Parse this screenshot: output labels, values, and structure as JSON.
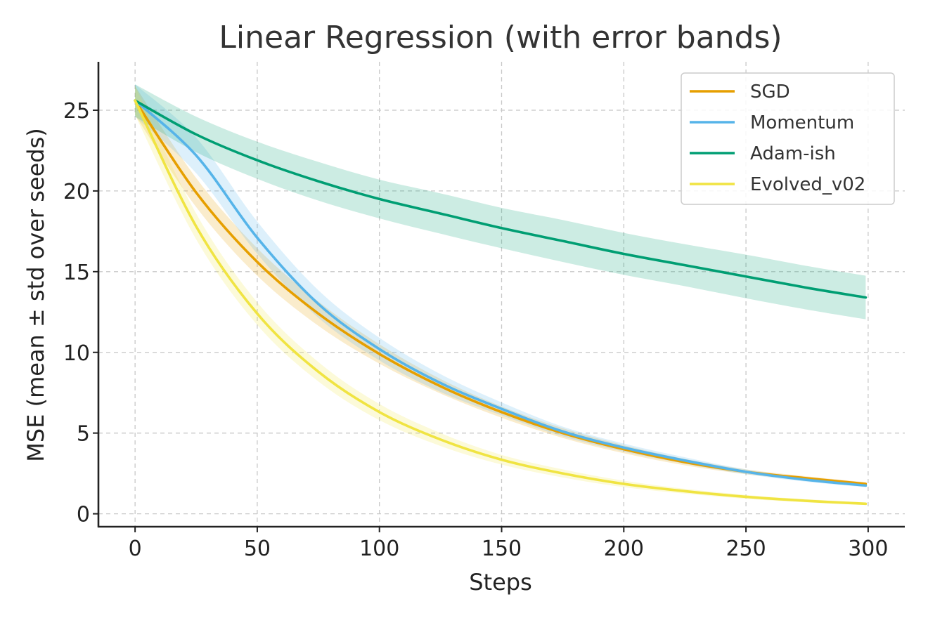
{
  "chart_data": {
    "type": "line",
    "title": "Linear Regression (with error bands)",
    "xlabel": "Steps",
    "ylabel": "MSE (mean ± std over seeds)",
    "xlim": [
      -15,
      315
    ],
    "ylim": [
      -0.8,
      28
    ],
    "xticks": [
      0,
      50,
      100,
      150,
      200,
      250,
      300
    ],
    "yticks": [
      0,
      5,
      10,
      15,
      20,
      25
    ],
    "grid": true,
    "legend_position": "top-right",
    "x": [
      0,
      25,
      50,
      75,
      100,
      125,
      150,
      175,
      200,
      225,
      250,
      275,
      299
    ],
    "series": [
      {
        "name": "SGD",
        "color": "#E69F00",
        "mean": [
          25.6,
          19.9,
          15.6,
          12.4,
          9.9,
          7.9,
          6.3,
          5.0,
          4.0,
          3.2,
          2.6,
          2.2,
          1.85
        ],
        "std": [
          0.9,
          0.9,
          0.85,
          0.75,
          0.6,
          0.45,
          0.35,
          0.3,
          0.25,
          0.2,
          0.15,
          0.12,
          0.1
        ]
      },
      {
        "name": "Momentum",
        "color": "#56B4E9",
        "mean": [
          25.6,
          22.2,
          17.1,
          13.0,
          10.2,
          8.1,
          6.5,
          5.1,
          4.1,
          3.3,
          2.6,
          2.1,
          1.75
        ],
        "std": [
          1.0,
          1.1,
          1.0,
          0.85,
          0.7,
          0.55,
          0.4,
          0.3,
          0.25,
          0.2,
          0.15,
          0.12,
          0.1
        ]
      },
      {
        "name": "Adam-ish",
        "color": "#009E73",
        "mean": [
          25.6,
          23.5,
          21.9,
          20.6,
          19.5,
          18.6,
          17.7,
          16.9,
          16.1,
          15.4,
          14.7,
          14.0,
          13.4
        ],
        "std": [
          1.0,
          1.1,
          1.15,
          1.2,
          1.2,
          1.25,
          1.25,
          1.3,
          1.3,
          1.3,
          1.35,
          1.35,
          1.35
        ]
      },
      {
        "name": "Evolved_v02",
        "color": "#F0E442",
        "mean": [
          25.6,
          17.8,
          12.4,
          8.8,
          6.3,
          4.6,
          3.35,
          2.5,
          1.85,
          1.4,
          1.05,
          0.8,
          0.62
        ],
        "std": [
          0.9,
          0.8,
          0.7,
          0.6,
          0.5,
          0.4,
          0.3,
          0.25,
          0.2,
          0.15,
          0.12,
          0.1,
          0.08
        ]
      }
    ]
  }
}
